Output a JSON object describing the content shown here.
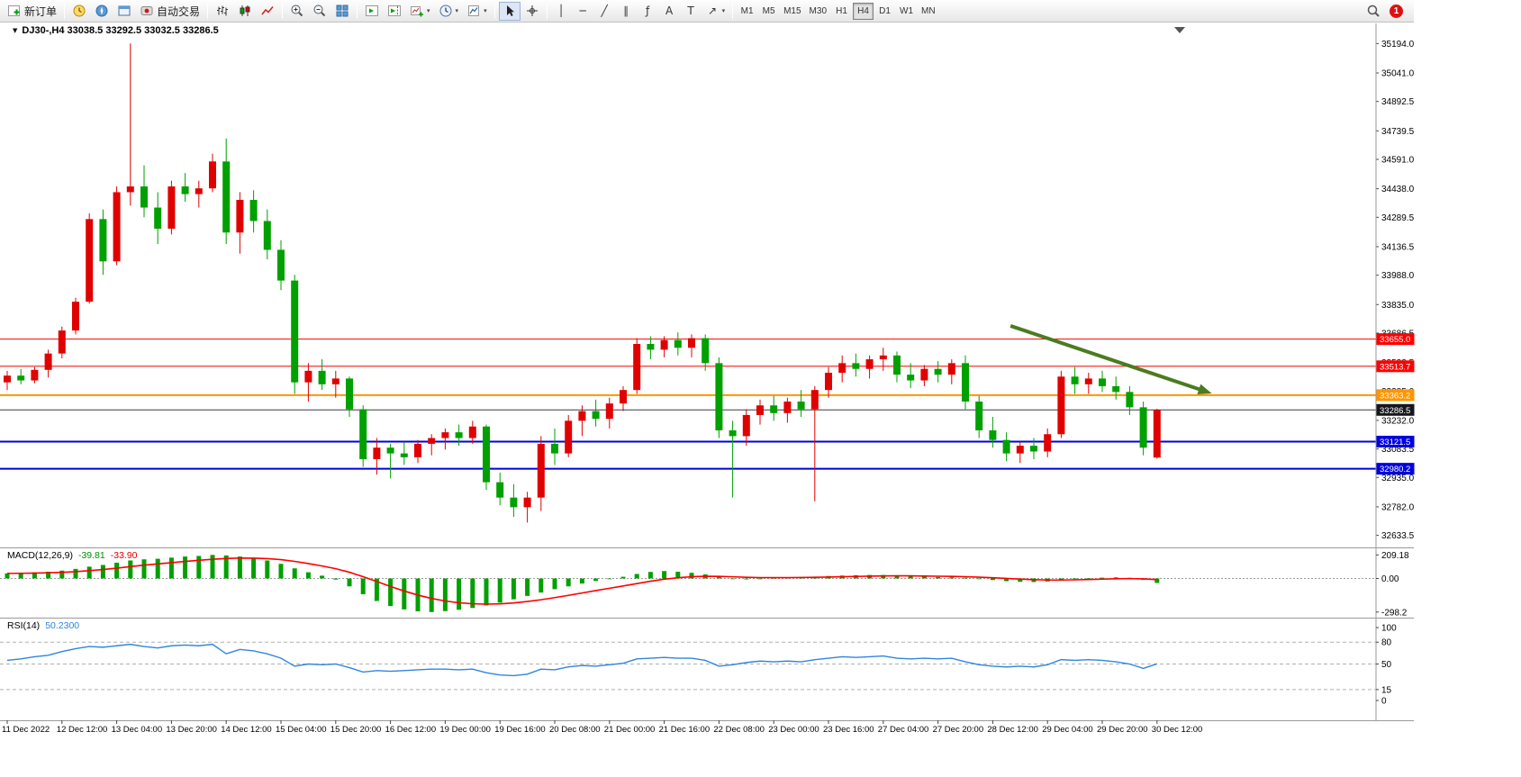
{
  "toolbar": {
    "new_order_label": "新订单",
    "auto_trading_label": "自动交易",
    "timeframes": [
      "M1",
      "M5",
      "M15",
      "M30",
      "H1",
      "H4",
      "D1",
      "W1",
      "MN"
    ],
    "active_timeframe": "H4",
    "notification_count": "1"
  },
  "icons": {
    "collapse_arrow": "▼",
    "caret": "▾",
    "vline": "│",
    "hline": "─",
    "trendline": "╱",
    "channel": "∥",
    "fibonacci": "ƒ",
    "text_tool": "A",
    "label_tool": "T",
    "arrows_tool": "↗"
  },
  "chart": {
    "title": "DJ30-,H4 33038.5 33292.5 33032.5 33286.5",
    "symbol": "DJ30-",
    "period": "H4",
    "open": "33038.5",
    "high": "33292.5",
    "low": "33032.5",
    "close": "33286.5"
  },
  "indicators": {
    "macd": {
      "label": "MACD(12,26,9)",
      "value_main": "-39.81",
      "value_signal": "-33.90"
    },
    "rsi": {
      "label": "RSI(14)",
      "value": "50.2300"
    }
  },
  "chart_data": {
    "type": "candlestick",
    "symbol": "DJ30-",
    "timeframe": "H4",
    "label_every_n_candles": 4,
    "time_labels": [
      "11 Dec 2022",
      "12 Dec 12:00",
      "13 Dec 04:00",
      "13 Dec 20:00",
      "14 Dec 12:00",
      "15 Dec 04:00",
      "15 Dec 20:00",
      "16 Dec 12:00",
      "19 Dec 00:00",
      "19 Dec 16:00",
      "20 Dec 08:00",
      "21 Dec 00:00",
      "21 Dec 16:00",
      "22 Dec 08:00",
      "23 Dec 00:00",
      "23 Dec 16:00",
      "27 Dec 04:00",
      "27 Dec 20:00",
      "28 Dec 12:00",
      "29 Dec 04:00",
      "29 Dec 20:00",
      "30 Dec 12:00"
    ],
    "price_axis_ticks": [
      35194.0,
      35041.0,
      34892.5,
      34739.5,
      34591.0,
      34438.0,
      34289.5,
      34136.5,
      33988.0,
      33835.0,
      33686.5,
      33533.5,
      33385.0,
      33232.0,
      33083.5,
      32935.0,
      32782.0,
      32633.5
    ],
    "candles_ohlc": [
      [
        33430,
        33490,
        33390,
        33465
      ],
      [
        33465,
        33500,
        33420,
        33440
      ],
      [
        33440,
        33510,
        33425,
        33495
      ],
      [
        33495,
        33600,
        33455,
        33580
      ],
      [
        33580,
        33720,
        33555,
        33700
      ],
      [
        33700,
        33870,
        33680,
        33850
      ],
      [
        33850,
        34310,
        33840,
        34280
      ],
      [
        34280,
        34330,
        33990,
        34060
      ],
      [
        34060,
        34450,
        34040,
        34420
      ],
      [
        34420,
        35194,
        34350,
        34450
      ],
      [
        34450,
        34560,
        34290,
        34340
      ],
      [
        34340,
        34420,
        34150,
        34230
      ],
      [
        34230,
        34480,
        34200,
        34450
      ],
      [
        34450,
        34520,
        34370,
        34410
      ],
      [
        34410,
        34480,
        34340,
        34440
      ],
      [
        34440,
        34620,
        34420,
        34580
      ],
      [
        34580,
        34700,
        34150,
        34210
      ],
      [
        34210,
        34420,
        34100,
        34380
      ],
      [
        34380,
        34430,
        34210,
        34270
      ],
      [
        34270,
        34330,
        34070,
        34120
      ],
      [
        34120,
        34170,
        33910,
        33960
      ],
      [
        33960,
        33990,
        33370,
        33430
      ],
      [
        33430,
        33530,
        33330,
        33490
      ],
      [
        33490,
        33550,
        33390,
        33420
      ],
      [
        33420,
        33490,
        33350,
        33450
      ],
      [
        33450,
        33460,
        33250,
        33290
      ],
      [
        33290,
        33310,
        32990,
        33030
      ],
      [
        33030,
        33140,
        32950,
        33090
      ],
      [
        33090,
        33110,
        32930,
        33060
      ],
      [
        33060,
        33120,
        33000,
        33040
      ],
      [
        33040,
        33130,
        33010,
        33110
      ],
      [
        33110,
        33160,
        33050,
        33140
      ],
      [
        33140,
        33190,
        33080,
        33170
      ],
      [
        33170,
        33210,
        33100,
        33140
      ],
      [
        33140,
        33230,
        33110,
        33200
      ],
      [
        33200,
        33210,
        32870,
        32910
      ],
      [
        32910,
        32960,
        32790,
        32830
      ],
      [
        32830,
        32900,
        32730,
        32780
      ],
      [
        32780,
        32860,
        32700,
        32830
      ],
      [
        32830,
        33150,
        32760,
        33110
      ],
      [
        33110,
        33190,
        33000,
        33060
      ],
      [
        33060,
        33260,
        33040,
        33230
      ],
      [
        33230,
        33310,
        33150,
        33280
      ],
      [
        33280,
        33340,
        33200,
        33240
      ],
      [
        33240,
        33350,
        33190,
        33320
      ],
      [
        33320,
        33410,
        33280,
        33390
      ],
      [
        33390,
        33660,
        33370,
        33630
      ],
      [
        33630,
        33670,
        33550,
        33600
      ],
      [
        33600,
        33670,
        33560,
        33650
      ],
      [
        33650,
        33690,
        33570,
        33610
      ],
      [
        33610,
        33680,
        33560,
        33660
      ],
      [
        33660,
        33680,
        33490,
        33530
      ],
      [
        33530,
        33560,
        33140,
        33180
      ],
      [
        33180,
        33230,
        32830,
        33150
      ],
      [
        33150,
        33290,
        33100,
        33260
      ],
      [
        33260,
        33340,
        33210,
        33310
      ],
      [
        33310,
        33360,
        33230,
        33270
      ],
      [
        33270,
        33350,
        33220,
        33330
      ],
      [
        33330,
        33390,
        33250,
        33290
      ],
      [
        33290,
        33410,
        32810,
        33390
      ],
      [
        33390,
        33510,
        33350,
        33480
      ],
      [
        33480,
        33570,
        33430,
        33530
      ],
      [
        33530,
        33580,
        33460,
        33500
      ],
      [
        33500,
        33570,
        33450,
        33550
      ],
      [
        33550,
        33610,
        33490,
        33570
      ],
      [
        33570,
        33590,
        33430,
        33470
      ],
      [
        33470,
        33530,
        33400,
        33440
      ],
      [
        33440,
        33520,
        33410,
        33500
      ],
      [
        33500,
        33540,
        33430,
        33470
      ],
      [
        33470,
        33550,
        33420,
        33530
      ],
      [
        33530,
        33570,
        33290,
        33330
      ],
      [
        33330,
        33360,
        33140,
        33180
      ],
      [
        33180,
        33250,
        33090,
        33130
      ],
      [
        33130,
        33170,
        33020,
        33060
      ],
      [
        33060,
        33120,
        33010,
        33100
      ],
      [
        33100,
        33140,
        33030,
        33070
      ],
      [
        33070,
        33190,
        33040,
        33160
      ],
      [
        33160,
        33490,
        33140,
        33460
      ],
      [
        33460,
        33510,
        33370,
        33420
      ],
      [
        33420,
        33480,
        33370,
        33450
      ],
      [
        33450,
        33490,
        33380,
        33410
      ],
      [
        33410,
        33460,
        33340,
        33380
      ],
      [
        33380,
        33410,
        33260,
        33300
      ],
      [
        33300,
        33330,
        33050,
        33090
      ],
      [
        33038.5,
        33292.5,
        33032.5,
        33286.5
      ]
    ],
    "horizontal_lines": [
      {
        "price": 33655.0,
        "label": "33655.0",
        "color": "#ff0000",
        "width": 1
      },
      {
        "price": 33513.7,
        "label": "33513.7",
        "color": "#ff0000",
        "width": 1
      },
      {
        "price": 33363.2,
        "label": "33363.2",
        "color": "#ff9500",
        "width": 2
      },
      {
        "price": 33286.5,
        "label": "33286.5",
        "color": "#3a3a45",
        "width": 1,
        "role": "current_price"
      },
      {
        "price": 33121.5,
        "label": "33121.5",
        "color": "#0000e0",
        "width": 2
      },
      {
        "price": 32980.2,
        "label": "32980.2",
        "color": "#0000e0",
        "width": 2
      }
    ],
    "trend_arrow": {
      "from_candle": 73.3,
      "from_price": 33724,
      "to_candle": 88,
      "to_price": 33372,
      "color": "#4b7b22"
    },
    "macd": {
      "params": "12,26,9",
      "histogram": [
        45,
        50,
        55,
        60,
        70,
        85,
        105,
        120,
        140,
        160,
        170,
        175,
        185,
        195,
        200,
        209.18,
        205,
        195,
        180,
        160,
        130,
        90,
        55,
        25,
        -10,
        -70,
        -140,
        -200,
        -245,
        -275,
        -292,
        -298.2,
        -290,
        -278,
        -262,
        -240,
        -215,
        -185,
        -155,
        -125,
        -95,
        -70,
        -45,
        -22,
        -5,
        15,
        40,
        58,
        66,
        60,
        50,
        36,
        16,
        0,
        -8,
        -2,
        5,
        10,
        13,
        16,
        22,
        26,
        29,
        31,
        31,
        27,
        22,
        16,
        13,
        11,
        6,
        -4,
        -14,
        -24,
        -30,
        -32,
        -27,
        -14,
        -4,
        2,
        7,
        10,
        6,
        -12,
        -39.81
      ],
      "scale_ticks": [
        "209.18",
        "0.00",
        "-298.2"
      ],
      "histogram_color": "#00a000",
      "signal_color": "#ff0000"
    },
    "rsi": {
      "period": 14,
      "values": [
        55,
        57,
        60,
        62,
        67,
        71,
        74,
        73,
        75,
        77,
        74,
        72,
        75,
        76,
        75,
        77,
        64,
        70,
        68,
        64,
        58,
        47,
        50,
        49,
        50,
        45,
        39,
        41,
        40,
        41,
        42,
        43,
        43,
        42,
        43,
        38,
        35,
        34,
        36,
        43,
        42,
        46,
        48,
        47,
        49,
        51,
        57,
        58,
        59,
        58,
        58,
        55,
        47,
        49,
        52,
        54,
        53,
        54,
        53,
        56,
        58,
        60,
        59,
        60,
        61,
        58,
        57,
        58,
        57,
        58,
        53,
        49,
        47,
        46,
        47,
        46,
        49,
        56,
        55,
        56,
        55,
        53,
        50,
        44,
        50.23
      ],
      "levels": [
        80,
        50,
        15
      ],
      "scale_ticks": [
        100,
        80,
        50,
        15,
        0
      ],
      "line_color": "#2e86e0"
    },
    "colors": {
      "up": "#e00000",
      "down": "#00a000",
      "background": "#ffffff"
    }
  }
}
